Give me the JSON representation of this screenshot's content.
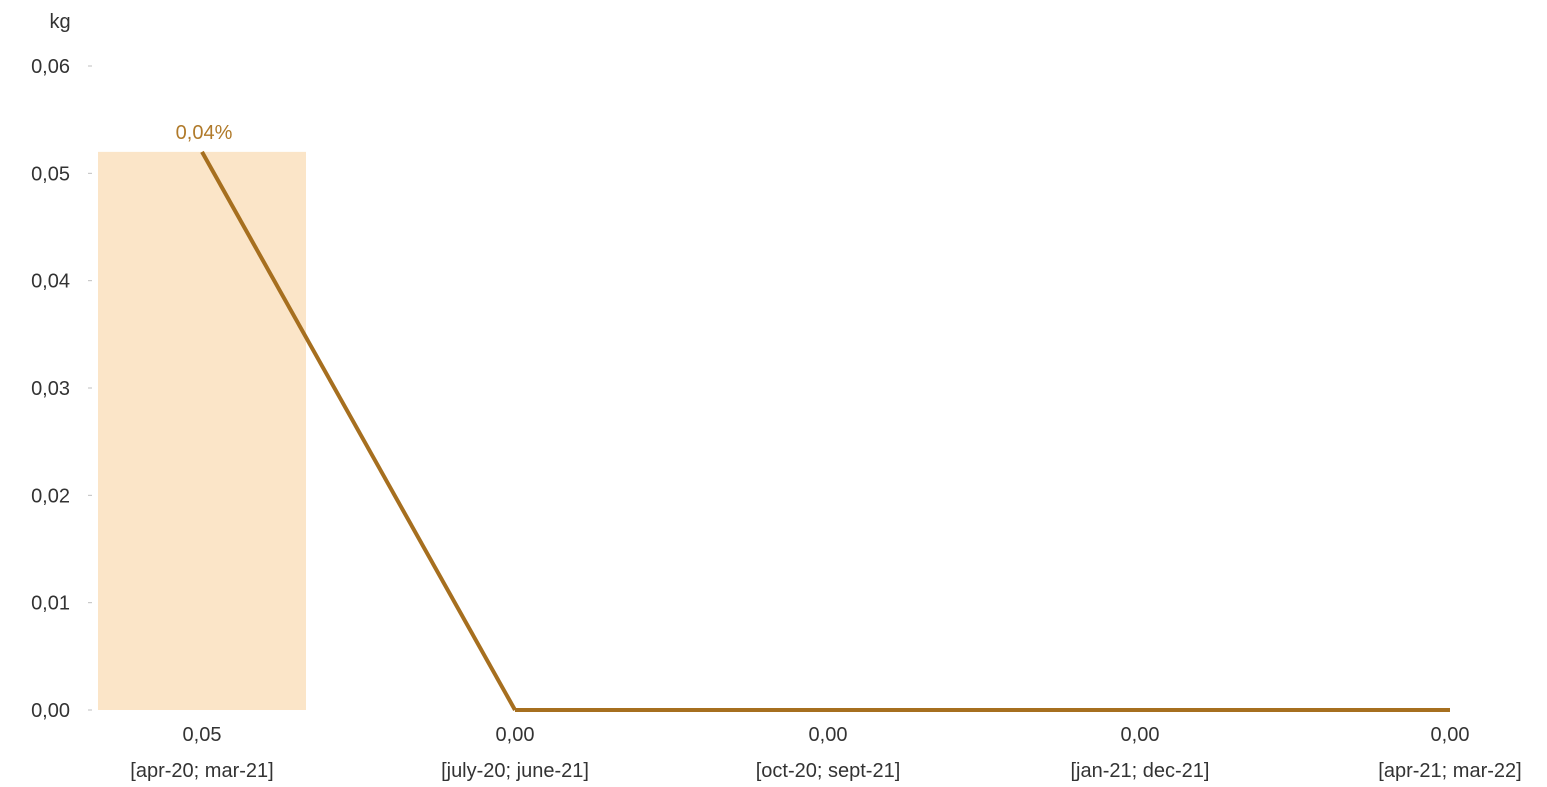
{
  "chart_data": {
    "type": "line",
    "ylabel": "kg",
    "ylim": [
      0,
      0.06
    ],
    "yticks": [
      "0,00",
      "0,01",
      "0,02",
      "0,03",
      "0,04",
      "0,05",
      "0,06"
    ],
    "categories": [
      {
        "value_label": "0,05",
        "period": "[apr-20; mar-21]"
      },
      {
        "value_label": "0,00",
        "period": "[july-20; june-21]"
      },
      {
        "value_label": "0,00",
        "period": "[oct-20; sept-21]"
      },
      {
        "value_label": "0,00",
        "period": "[jan-21; dec-21]"
      },
      {
        "value_label": "0,00",
        "period": "[apr-21; mar-22]"
      }
    ],
    "series": [
      {
        "values": [
          0.052,
          0,
          0,
          0,
          0
        ],
        "color": "#a66f1f"
      }
    ],
    "highlight": {
      "category_index": 0,
      "value": 0.052,
      "color": "#fbe5c8"
    },
    "annotations": [
      {
        "text": "0,04%",
        "category_index": 0,
        "color": "#b07a2a"
      }
    ],
    "grid": false
  }
}
